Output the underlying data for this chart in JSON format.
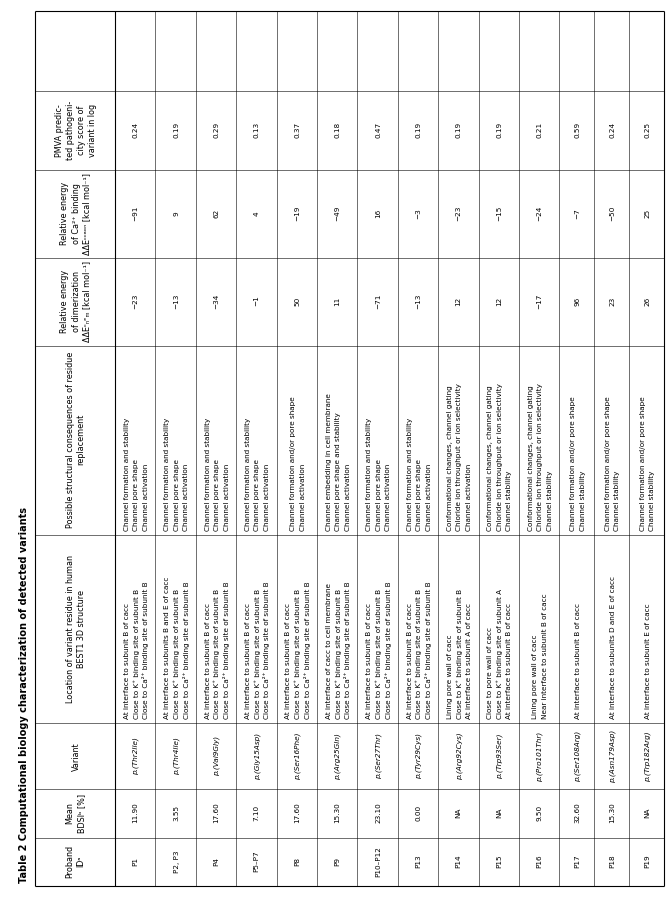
{
  "title": "Table 2 Computational biology characterization of detected variants",
  "rows": [
    {
      "proband": "P1",
      "bdsi": "11.90",
      "variant": "p.(Thr2Ile)",
      "location": [
        "At interface to subunit B of cacc",
        "Close to K⁺ binding site of subunit B",
        "Close to Ca²⁺ binding site of subunit B"
      ],
      "consequences": [
        "Channel formation and stability",
        "Channel pore shape",
        "Channel activation"
      ],
      "ddE_dim": "−23",
      "ddE_cabin": "−91",
      "pmva": "0.24"
    },
    {
      "proband": "P2, P3",
      "bdsi": "3.55",
      "variant": "p.(Thr4Ile)",
      "location": [
        "At interface to subunits B and E of cacc",
        "Close to K⁺ binding site of subunit B",
        "Close to Ca²⁺ binding site of subunit B"
      ],
      "consequences": [
        "Channel formation and stability",
        "Channel pore shape",
        "Channel activation"
      ],
      "ddE_dim": "−13",
      "ddE_cabin": "9",
      "pmva": "0.19"
    },
    {
      "proband": "P4",
      "bdsi": "17.60",
      "variant": "p.(Val9Gly)",
      "location": [
        "At interface to subunit B of cacc",
        "Close to K⁺ binding site of subunit B",
        "Close to Ca²⁺ binding site of subunit B"
      ],
      "consequences": [
        "Channel formation and stability",
        "Channel pore shape",
        "Channel activation"
      ],
      "ddE_dim": "−34",
      "ddE_cabin": "62",
      "pmva": "0.29"
    },
    {
      "proband": "P5–P7",
      "bdsi": "7.10",
      "variant": "p.(Gly15Asp)",
      "location": [
        "At interface to subunit B of cacc",
        "Close to K⁺ binding site of subunit B",
        "Close to Ca²⁺ binding site of subunit B"
      ],
      "consequences": [
        "Channel formation and stability",
        "Channel pore shape",
        "Channel activation"
      ],
      "ddE_dim": "−1",
      "ddE_cabin": "4",
      "pmva": "0.13"
    },
    {
      "proband": "P8",
      "bdsi": "17.60",
      "variant": "p.(Ser16Phe)",
      "location": [
        "At interface to subunit B of cacc",
        "Close to K⁺ binding site of subunit B",
        "Close to Ca²⁺ binding site of subunit B"
      ],
      "consequences": [
        "Channel formation and/or pore shape",
        "Channel activation"
      ],
      "ddE_dim": "50",
      "ddE_cabin": "−19",
      "pmva": "0.37"
    },
    {
      "proband": "P9",
      "bdsi": "15.30",
      "variant": "p.(Arg25GIn)",
      "location": [
        "At interface of cacc to cell membrane",
        "Close to K⁺ binding site of subunit B",
        "Close to Ca²⁺ binding site of subunit B"
      ],
      "consequences": [
        "Channel embedding in cell membrane",
        "Channel pore shape and stability",
        "Channel activation"
      ],
      "ddE_dim": "11",
      "ddE_cabin": "−49",
      "pmva": "0.18"
    },
    {
      "proband": "P10–P12",
      "bdsi": "23.10",
      "variant": "p.(Ser27Thr)",
      "location": [
        "At interface to subunit B of cacc",
        "Close to K⁺ binding site of subunit B",
        "Close to Ca²⁺ binding site of subunit B"
      ],
      "consequences": [
        "Channel formation and stability",
        "Channel pore shape",
        "Channel activation"
      ],
      "ddE_dim": "−71",
      "ddE_cabin": "16",
      "pmva": "0.47"
    },
    {
      "proband": "P13",
      "bdsi": "0.00",
      "variant": "p.(Tyr29Cys)",
      "location": [
        "At interface to subunit B of cacc",
        "Close to K⁺ binding site of subunit B",
        "Close to Ca²⁺ binding site of subunit B"
      ],
      "consequences": [
        "Channel formation and stability",
        "Channel pore shape",
        "Channel activation"
      ],
      "ddE_dim": "−13",
      "ddE_cabin": "−3",
      "pmva": "0.19"
    },
    {
      "proband": "P14",
      "bdsi": "NA",
      "variant": "p.(Arg92Cys)",
      "location": [
        "Lining pore wall of cacc",
        "Close to K⁺ binding site of subunit B",
        "At interface to subunit A of cacc"
      ],
      "consequences": [
        "Conformational changes, channel gating",
        "Chloride ion throughput or ion selectivity",
        "Channel activation"
      ],
      "ddE_dim": "12",
      "ddE_cabin": "−23",
      "pmva": "0.19"
    },
    {
      "proband": "P15",
      "bdsi": "NA",
      "variant": "p.(Trp93Ser)",
      "location": [
        "Close to pore wall of cacc",
        "Close to K⁺ binding site of subunit A",
        "At interface to subunit B of cacc"
      ],
      "consequences": [
        "Conformational changes, channel gating",
        "Chloride ion throughput or ion selectivity",
        "Channel stability"
      ],
      "ddE_dim": "12",
      "ddE_cabin": "−15",
      "pmva": "0.19"
    },
    {
      "proband": "P16",
      "bdsi": "9.50",
      "variant": "p.(Pro101Thr)",
      "location": [
        "Lining pore wall of cacc",
        "Near interface to subunit B of cacc"
      ],
      "consequences": [
        "Conformational changes, channel gating",
        "Chloride ion throughput or ion selectivity",
        "Channel stability"
      ],
      "ddE_dim": "−17",
      "ddE_cabin": "−24",
      "pmva": "0.21"
    },
    {
      "proband": "P17",
      "bdsi": "32.60",
      "variant": "p.(Ser108Arg)",
      "location": [
        "At interface to subunit B of cacc"
      ],
      "consequences": [
        "Channel formation and/or pore shape",
        "Channel stability"
      ],
      "ddE_dim": "96",
      "ddE_cabin": "−7",
      "pmva": "0.59"
    },
    {
      "proband": "P18",
      "bdsi": "15.30",
      "variant": "p.(Asn179Asp)",
      "location": [
        "At interface to subunits D and E of cacc"
      ],
      "consequences": [
        "Channel formation and/or pore shape",
        "Channel stability"
      ],
      "ddE_dim": "23",
      "ddE_cabin": "−50",
      "pmva": "0.24"
    },
    {
      "proband": "P19",
      "bdsi": "NA",
      "variant": "p.(Trp182Arg)",
      "location": [
        "At interface to subunit E of cacc"
      ],
      "consequences": [
        "Channel formation and/or pore shape",
        "Channel stability"
      ],
      "ddE_dim": "26",
      "ddE_cabin": "25",
      "pmva": "0.25"
    }
  ],
  "bg_color": "#ffffff",
  "text_color": "#000000",
  "line_color": "#000000",
  "title_fontsize": 7.0,
  "header_fontsize": 5.8,
  "cell_fontsize": 5.2
}
